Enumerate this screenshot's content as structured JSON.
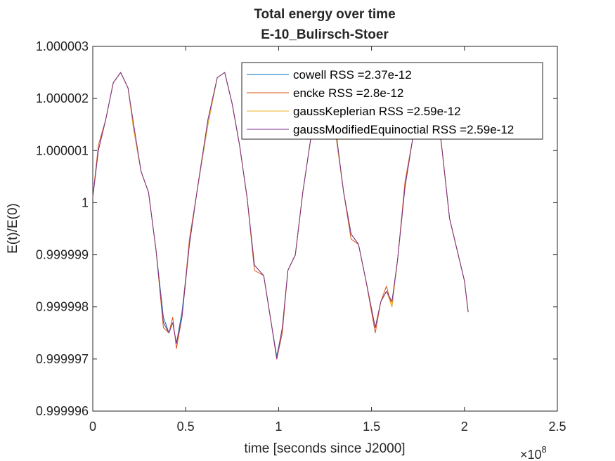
{
  "chart_data": {
    "type": "line",
    "title": "Total energy over time",
    "subtitle": "E-10_Bulirsch-Stoer",
    "xlabel": "time [seconds since J2000]",
    "ylabel": "E(t)/E(0)",
    "x_exponent_label": "×10",
    "x_exponent_power": "8",
    "xlim": [
      0,
      2.5
    ],
    "ylim": [
      0.999996,
      1.000003
    ],
    "x_units_scale": 100000000,
    "xticks": [
      0,
      0.5,
      1,
      1.5,
      2,
      2.5
    ],
    "xtick_labels": [
      "0",
      "0.5",
      "1",
      "1.5",
      "2",
      "2.5"
    ],
    "yticks": [
      0.999996,
      0.999997,
      0.999998,
      0.999999,
      1,
      1.000001,
      1.000002,
      1.000003
    ],
    "ytick_labels": [
      "0.999996",
      "0.999997",
      "0.999998",
      "0.999999",
      "1",
      "1.000001",
      "1.000002",
      "1.000003"
    ],
    "grid": false,
    "legend_position": "top-right",
    "colors": {
      "cowell": "#0072BD",
      "encke": "#D95319",
      "gaussKeplerian": "#EDB120",
      "gaussModifiedEquinoctial": "#7E2F8E",
      "axis": "#262626"
    },
    "series": [
      {
        "name": "cowell",
        "legend_label": "cowell RSS =2.37e-12",
        "x": [
          0,
          0.03,
          0.07,
          0.11,
          0.15,
          0.19,
          0.22,
          0.26,
          0.3,
          0.34,
          0.38,
          0.41,
          0.43,
          0.45,
          0.48,
          0.52,
          0.56,
          0.62,
          0.67,
          0.71,
          0.75,
          0.79,
          0.83,
          0.87,
          0.92,
          0.96,
          0.99,
          1.02,
          1.05,
          1.09,
          1.13,
          1.18,
          1.24,
          1.3,
          1.35,
          1.39,
          1.43,
          1.47,
          1.52,
          1.55,
          1.58,
          1.61,
          1.64,
          1.68,
          1.72,
          1.77,
          1.83,
          1.88,
          1.92,
          1.96,
          2.0,
          2.02
        ],
        "y": [
          1.0000001,
          1.000001,
          1.0000016,
          1.0000023,
          1.0000025,
          1.0000022,
          1.0000014,
          1.0000006,
          1.0000002,
          0.9999991,
          0.9999978,
          0.9999975,
          0.9999977,
          0.9999973,
          0.9999979,
          0.9999992,
          1.0000002,
          1.0000015,
          1.0000024,
          1.0000025,
          1.0000019,
          1.0000011,
          1.0000001,
          0.9999988,
          0.9999986,
          0.9999977,
          0.99999705,
          0.9999976,
          0.9999987,
          0.999999,
          1.0000002,
          1.0000014,
          1.0000025,
          1.0000015,
          1.0000002,
          0.9999994,
          0.9999992,
          0.9999985,
          0.9999976,
          0.9999981,
          0.9999983,
          0.9999981,
          0.9999989,
          1.0000003,
          1.0000012,
          1.000002,
          1.0000025,
          1.000001,
          0.9999997,
          0.9999991,
          0.9999985,
          0.9999979
        ]
      },
      {
        "name": "encke",
        "legend_label": "encke RSS =2.8e-12",
        "x": [
          0,
          0.03,
          0.07,
          0.11,
          0.15,
          0.19,
          0.22,
          0.26,
          0.3,
          0.34,
          0.38,
          0.41,
          0.43,
          0.45,
          0.48,
          0.52,
          0.56,
          0.62,
          0.67,
          0.71,
          0.75,
          0.79,
          0.83,
          0.87,
          0.92,
          0.96,
          0.99,
          1.02,
          1.05,
          1.09,
          1.13,
          1.18,
          1.24,
          1.3,
          1.35,
          1.39,
          1.43,
          1.47,
          1.52,
          1.55,
          1.58,
          1.61,
          1.64,
          1.68,
          1.72,
          1.77,
          1.83,
          1.88,
          1.92,
          1.96,
          2.0,
          2.02
        ],
        "y": [
          1.0000001,
          1.0000011,
          1.0000016,
          1.0000023,
          1.0000025,
          1.0000022,
          1.0000014,
          1.0000006,
          1.0000002,
          0.9999991,
          0.9999976,
          0.9999975,
          0.9999978,
          0.9999972,
          0.9999978,
          0.9999993,
          1.0000002,
          1.0000016,
          1.0000024,
          1.0000025,
          1.0000019,
          1.0000011,
          1.0000001,
          0.9999987,
          0.9999986,
          0.9999977,
          0.999997,
          0.9999975,
          0.9999987,
          0.999999,
          1.0000002,
          1.0000014,
          1.0000025,
          1.0000016,
          1.0000002,
          0.9999993,
          0.9999992,
          0.9999985,
          0.9999975,
          0.9999981,
          0.9999984,
          0.999998,
          0.9999989,
          1.0000004,
          1.0000012,
          1.000002,
          1.0000025,
          1.000001,
          0.9999997,
          0.9999991,
          0.9999985,
          0.9999979
        ]
      },
      {
        "name": "gaussKeplerian",
        "legend_label": "gaussKeplerian RSS =2.59e-12",
        "x": [
          0,
          0.03,
          0.07,
          0.11,
          0.15,
          0.19,
          0.22,
          0.26,
          0.3,
          0.34,
          0.38,
          0.41,
          0.43,
          0.45,
          0.48,
          0.52,
          0.56,
          0.62,
          0.67,
          0.71,
          0.75,
          0.79,
          0.83,
          0.87,
          0.92,
          0.96,
          0.99,
          1.02,
          1.05,
          1.09,
          1.13,
          1.18,
          1.24,
          1.3,
          1.35,
          1.39,
          1.43,
          1.47,
          1.52,
          1.55,
          1.58,
          1.61,
          1.64,
          1.68,
          1.72,
          1.77,
          1.83,
          1.88,
          1.92,
          1.96,
          2.0,
          2.02
        ],
        "y": [
          1.0000001,
          1.000001,
          1.0000016,
          1.0000023,
          1.0000025,
          1.0000022,
          1.0000014,
          1.0000006,
          1.0000002,
          0.9999991,
          0.9999977,
          0.9999975,
          0.9999977,
          0.9999973,
          0.9999978,
          0.9999992,
          1.0000002,
          1.0000015,
          1.0000024,
          1.0000025,
          1.0000019,
          1.0000011,
          1.0000001,
          0.9999988,
          0.9999986,
          0.9999977,
          0.999997,
          0.9999976,
          0.9999987,
          0.999999,
          1.0000002,
          1.0000014,
          1.0000025,
          1.0000015,
          1.0000002,
          0.9999994,
          0.9999992,
          0.9999985,
          0.9999976,
          0.9999981,
          0.9999983,
          0.999998,
          0.9999989,
          1.0000003,
          1.0000012,
          1.000002,
          1.0000025,
          1.000001,
          0.9999997,
          0.9999991,
          0.9999985,
          0.9999979
        ]
      },
      {
        "name": "gaussModifiedEquinoctial",
        "legend_label": "gaussModifiedEquinoctial RSS =2.59e-12",
        "x": [
          0,
          0.03,
          0.07,
          0.11,
          0.15,
          0.19,
          0.22,
          0.26,
          0.3,
          0.34,
          0.38,
          0.41,
          0.43,
          0.45,
          0.48,
          0.52,
          0.56,
          0.62,
          0.67,
          0.71,
          0.75,
          0.79,
          0.83,
          0.87,
          0.92,
          0.96,
          0.99,
          1.02,
          1.05,
          1.09,
          1.13,
          1.18,
          1.24,
          1.3,
          1.35,
          1.39,
          1.43,
          1.47,
          1.52,
          1.55,
          1.58,
          1.61,
          1.64,
          1.68,
          1.72,
          1.77,
          1.83,
          1.88,
          1.92,
          1.96,
          2.0,
          2.02
        ],
        "y": [
          1.0000001,
          1.000001,
          1.0000016,
          1.0000023,
          1.0000025,
          1.0000022,
          1.0000015,
          1.0000006,
          1.0000002,
          0.9999991,
          0.9999977,
          0.9999975,
          0.9999977,
          0.9999973,
          0.9999978,
          0.9999992,
          1.0000002,
          1.0000016,
          1.0000024,
          1.0000025,
          1.0000019,
          1.0000011,
          1.0000001,
          0.9999988,
          0.9999986,
          0.9999977,
          0.999997,
          0.9999976,
          0.9999987,
          0.999999,
          1.0000002,
          1.0000014,
          1.0000025,
          1.0000016,
          1.0000002,
          0.9999994,
          0.9999992,
          0.9999985,
          0.9999976,
          0.9999981,
          0.9999983,
          0.9999981,
          0.9999989,
          1.0000003,
          1.0000012,
          1.000002,
          1.0000025,
          1.000001,
          0.9999997,
          0.9999991,
          0.9999985,
          0.9999979
        ]
      }
    ]
  }
}
